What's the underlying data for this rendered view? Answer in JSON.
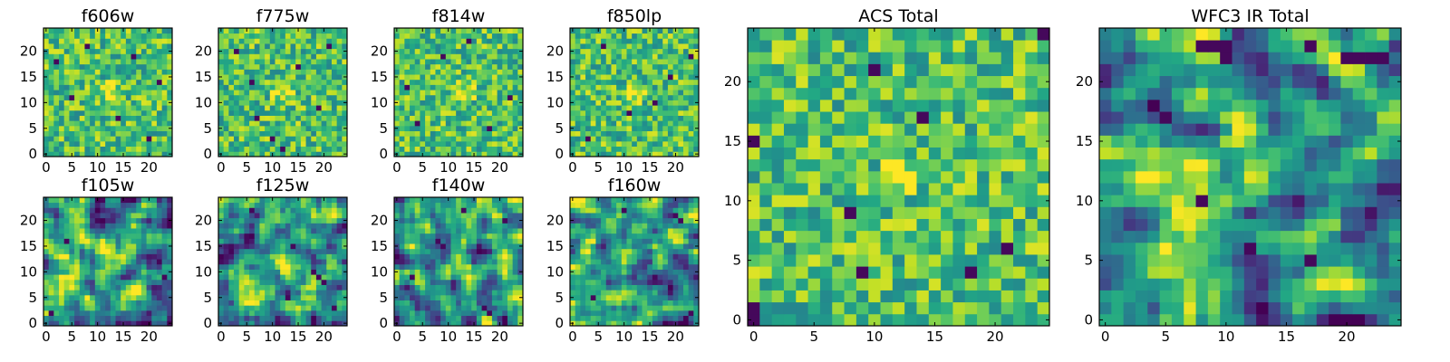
{
  "figure_title": "",
  "chart_data": [
    {
      "type": "heatmap",
      "title": "f606w",
      "size": "small",
      "seed": 11,
      "grid": [
        25,
        25
      ],
      "colormap": "viridis",
      "value_range": [
        0,
        1
      ],
      "xticks": [
        0,
        5,
        10,
        15,
        20
      ],
      "yticks": [
        0,
        5,
        10,
        15,
        20
      ],
      "xlim": [
        -0.5,
        24.5
      ],
      "ylim": [
        -0.5,
        24.5
      ],
      "bright_spot": {
        "x": 13,
        "y": 12,
        "radius": 2.5,
        "strength": 0.12
      },
      "dark_pixels": [
        [
          2,
          18
        ],
        [
          8,
          21
        ],
        [
          14,
          7
        ],
        [
          20,
          3
        ],
        [
          17,
          19
        ],
        [
          5,
          11
        ],
        [
          22,
          14
        ]
      ]
    },
    {
      "type": "heatmap",
      "title": "f775w",
      "size": "small",
      "seed": 23,
      "grid": [
        25,
        25
      ],
      "colormap": "viridis",
      "value_range": [
        0,
        1
      ],
      "xticks": [
        0,
        5,
        10,
        15,
        20
      ],
      "yticks": [
        0,
        5,
        10,
        15,
        20
      ],
      "xlim": [
        -0.5,
        24.5
      ],
      "ylim": [
        -0.5,
        24.5
      ],
      "bright_spot": {
        "x": 12,
        "y": 12,
        "radius": 3,
        "strength": 0.15
      },
      "dark_pixels": [
        [
          7,
          7
        ],
        [
          3,
          20
        ],
        [
          10,
          3
        ],
        [
          15,
          17
        ],
        [
          19,
          9
        ],
        [
          21,
          21
        ],
        [
          6,
          14
        ],
        [
          12,
          1
        ]
      ]
    },
    {
      "type": "heatmap",
      "title": "f814w",
      "size": "small",
      "seed": 37,
      "grid": [
        25,
        25
      ],
      "colormap": "viridis",
      "value_range": [
        0,
        1
      ],
      "xticks": [
        0,
        5,
        10,
        15,
        20
      ],
      "yticks": [
        0,
        5,
        10,
        15,
        20
      ],
      "xlim": [
        -0.5,
        24.5
      ],
      "ylim": [
        -0.5,
        24.5
      ],
      "bright_spot": {
        "x": 13,
        "y": 12,
        "radius": 2.5,
        "strength": 0.2
      },
      "dark_pixels": [
        [
          4,
          6
        ],
        [
          9,
          19
        ],
        [
          18,
          5
        ],
        [
          22,
          11
        ],
        [
          14,
          22
        ],
        [
          2,
          13
        ]
      ]
    },
    {
      "type": "heatmap",
      "title": "f850lp",
      "size": "small",
      "seed": 41,
      "grid": [
        25,
        25
      ],
      "colormap": "viridis",
      "value_range": [
        0,
        1
      ],
      "xticks": [
        0,
        5,
        10,
        15,
        20
      ],
      "yticks": [
        0,
        5,
        10,
        15,
        20
      ],
      "xlim": [
        -0.5,
        24.5
      ],
      "ylim": [
        -0.5,
        24.5
      ],
      "bright_spot": {
        "x": 12,
        "y": 12,
        "radius": 2.5,
        "strength": 0.15
      },
      "dark_pixels": [
        [
          6,
          21
        ],
        [
          11,
          8
        ],
        [
          19,
          15
        ],
        [
          3,
          3
        ],
        [
          16,
          10
        ],
        [
          23,
          19
        ]
      ]
    },
    {
      "type": "heatmap",
      "title": "f105w",
      "size": "small",
      "seed": 53,
      "grid": [
        25,
        25
      ],
      "colormap": "viridis",
      "value_range": [
        0,
        1
      ],
      "xticks": [
        0,
        5,
        10,
        15,
        20
      ],
      "yticks": [
        0,
        5,
        10,
        15,
        20
      ],
      "xlim": [
        -0.5,
        24.5
      ],
      "ylim": [
        -0.5,
        24.5
      ],
      "bright_spot": {
        "x": 13,
        "y": 12,
        "radius": 3,
        "strength": 0.25
      },
      "dark_pixels": [
        [
          16,
          24
        ],
        [
          4,
          16
        ],
        [
          23,
          9
        ],
        [
          10,
          20
        ],
        [
          1,
          2
        ]
      ]
    },
    {
      "type": "heatmap",
      "title": "f125w",
      "size": "small",
      "seed": 67,
      "grid": [
        25,
        25
      ],
      "colormap": "viridis",
      "value_range": [
        0,
        1
      ],
      "xticks": [
        0,
        5,
        10,
        15,
        20
      ],
      "yticks": [
        0,
        5,
        10,
        15,
        20
      ],
      "xlim": [
        -0.5,
        24.5
      ],
      "ylim": [
        -0.5,
        24.5
      ],
      "bright_spot": {
        "x": 11,
        "y": 12,
        "radius": 3,
        "strength": 0.2
      },
      "dark_pixels": [
        [
          18,
          10
        ],
        [
          19,
          9
        ],
        [
          20,
          8
        ],
        [
          13,
          5
        ],
        [
          6,
          22
        ],
        [
          22,
          3
        ],
        [
          14,
          15
        ]
      ]
    },
    {
      "type": "heatmap",
      "title": "f140w",
      "size": "small",
      "seed": 79,
      "grid": [
        25,
        25
      ],
      "colormap": "viridis",
      "value_range": [
        0,
        1
      ],
      "xticks": [
        0,
        5,
        10,
        15,
        20
      ],
      "yticks": [
        0,
        5,
        10,
        15,
        20
      ],
      "xlim": [
        -0.5,
        24.5
      ],
      "ylim": [
        -0.5,
        24.5
      ],
      "bright_spot": {
        "x": 12,
        "y": 11,
        "radius": 3,
        "strength": 0.22
      },
      "dark_pixels": [
        [
          8,
          16
        ],
        [
          9,
          15
        ],
        [
          17,
          3
        ],
        [
          18,
          2
        ],
        [
          3,
          9
        ],
        [
          21,
          20
        ],
        [
          13,
          22
        ]
      ]
    },
    {
      "type": "heatmap",
      "title": "f160w",
      "size": "small",
      "seed": 83,
      "grid": [
        25,
        25
      ],
      "colormap": "viridis",
      "value_range": [
        0,
        1
      ],
      "xticks": [
        0,
        5,
        10,
        15,
        20
      ],
      "yticks": [
        0,
        5,
        10,
        15,
        20
      ],
      "xlim": [
        -0.5,
        24.5
      ],
      "ylim": [
        -0.5,
        24.5
      ],
      "bright_spot": {
        "x": 12,
        "y": 12,
        "radius": 3,
        "strength": 0.25
      },
      "dark_pixels": [
        [
          10,
          22
        ],
        [
          20,
          21
        ],
        [
          21,
          20
        ],
        [
          4,
          5
        ],
        [
          16,
          9
        ],
        [
          23,
          2
        ]
      ]
    },
    {
      "type": "heatmap",
      "title": "ACS Total",
      "size": "large",
      "seed": 97,
      "grid": [
        25,
        25
      ],
      "colormap": "viridis",
      "value_range": [
        0,
        1
      ],
      "xticks": [
        0,
        5,
        10,
        15,
        20
      ],
      "yticks": [
        0,
        5,
        10,
        15,
        20
      ],
      "xlim": [
        -0.5,
        24.5
      ],
      "ylim": [
        -0.5,
        24.5
      ],
      "bright_spot": {
        "x": 12,
        "y": 12,
        "radius": 2,
        "strength": 0.25
      },
      "dark_pixels": [
        [
          24,
          24
        ],
        [
          10,
          21
        ],
        [
          14,
          17
        ],
        [
          0,
          15
        ],
        [
          8,
          9
        ],
        [
          21,
          6
        ],
        [
          18,
          4
        ],
        [
          9,
          4
        ],
        [
          0,
          1
        ],
        [
          0,
          0
        ]
      ]
    },
    {
      "type": "heatmap",
      "title": "WFC3 IR Total",
      "size": "large",
      "seed": 101,
      "grid": [
        25,
        25
      ],
      "colormap": "viridis",
      "value_range": [
        0,
        1
      ],
      "xticks": [
        0,
        5,
        10,
        15,
        20
      ],
      "yticks": [
        0,
        5,
        10,
        15,
        20
      ],
      "xlim": [
        -0.5,
        24.5
      ],
      "ylim": [
        -0.5,
        24.5
      ],
      "bright_spot": {
        "x": 12,
        "y": 13,
        "radius": 3.5,
        "strength": 0.35
      },
      "bright_edge": {
        "x": 0,
        "y": 9,
        "radius": 1.5,
        "strength": 0.3
      },
      "dark_pixels": [
        [
          8,
          23
        ],
        [
          9,
          23
        ],
        [
          10,
          23
        ],
        [
          10,
          22
        ],
        [
          17,
          23
        ],
        [
          20,
          22
        ],
        [
          21,
          22
        ],
        [
          22,
          22
        ],
        [
          23,
          22
        ],
        [
          8,
          10
        ],
        [
          12,
          6
        ],
        [
          17,
          5
        ],
        [
          5,
          17
        ]
      ]
    }
  ]
}
